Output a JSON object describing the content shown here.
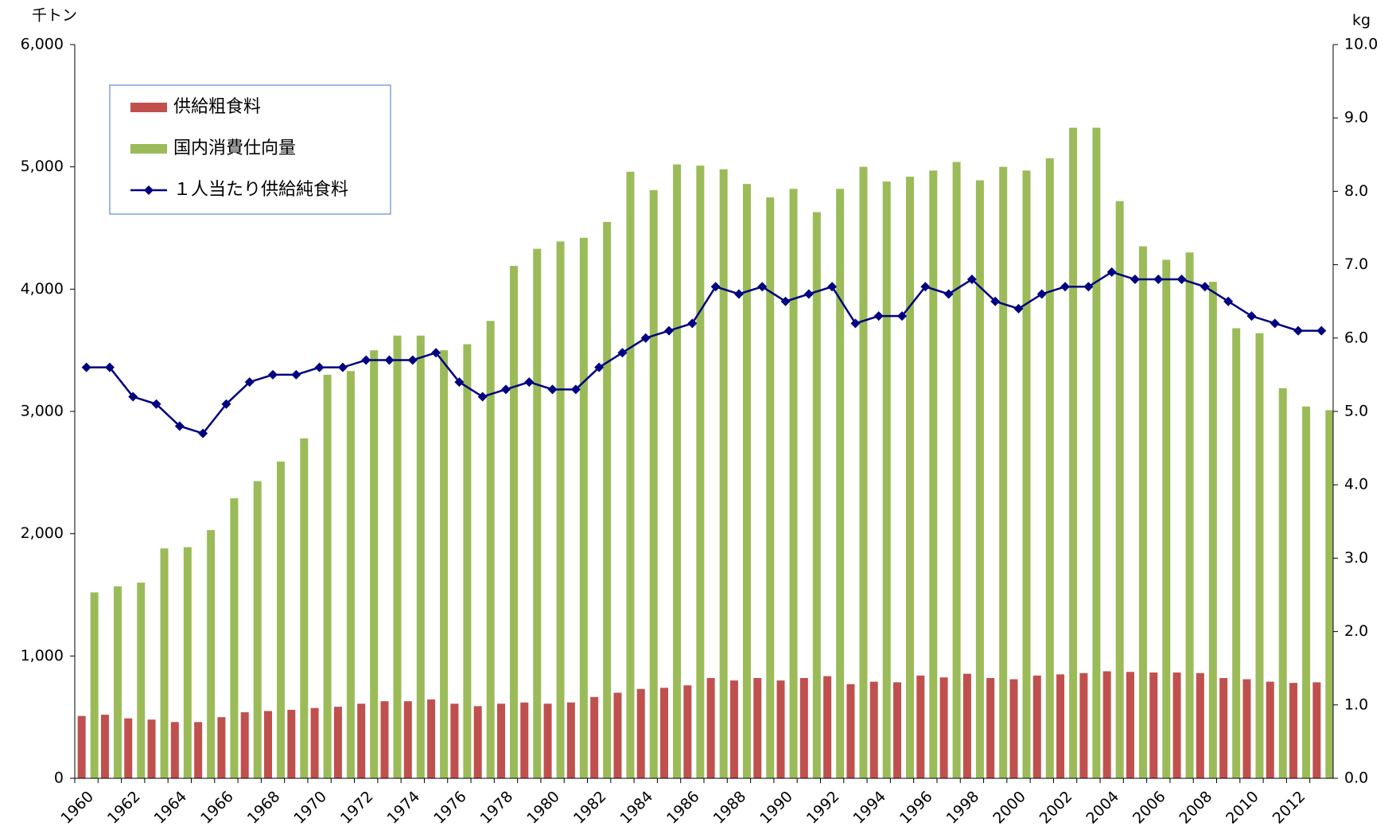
{
  "chart_data": {
    "type": "bar_line",
    "y_label": "千トン",
    "y2_label": "kg",
    "categories": [
      "1960",
      null,
      "1962",
      null,
      "1964",
      null,
      "1966",
      null,
      "1968",
      null,
      "1970",
      null,
      "1972",
      null,
      "1974",
      null,
      "1976",
      null,
      "1978",
      null,
      "1980",
      null,
      "1982",
      null,
      "1984",
      null,
      "1986",
      null,
      "1988",
      null,
      "1990",
      null,
      "1992",
      null,
      "1994",
      null,
      "1996",
      null,
      "1998",
      null,
      "2000",
      null,
      "2002",
      null,
      "2004",
      null,
      "2006",
      null,
      "2008",
      null,
      "2010",
      null,
      "2012",
      null
    ],
    "series": [
      {
        "name": "供給粗食料",
        "type": "bar",
        "color": "#c0504d",
        "values": [
          510,
          520,
          490,
          480,
          460,
          460,
          500,
          540,
          550,
          560,
          575,
          585,
          610,
          630,
          630,
          645,
          610,
          590,
          610,
          620,
          610,
          620,
          665,
          700,
          730,
          740,
          760,
          820,
          800,
          820,
          800,
          820,
          835,
          770,
          790,
          785,
          840,
          825,
          855,
          820,
          810,
          840,
          850,
          860,
          875,
          870,
          865,
          865,
          860,
          820,
          810,
          790,
          780,
          785
        ]
      },
      {
        "name": "国内消費仕向量",
        "type": "bar",
        "color": "#9bbb59",
        "values": [
          1520,
          1570,
          1600,
          1880,
          1890,
          2030,
          2290,
          2430,
          2590,
          2780,
          3300,
          3330,
          3500,
          3620,
          3620,
          3500,
          3550,
          3740,
          4190,
          4330,
          4390,
          4420,
          4550,
          4960,
          4810,
          5020,
          5010,
          4980,
          4860,
          4750,
          4820,
          4630,
          4820,
          5000,
          4880,
          4920,
          4970,
          5040,
          4890,
          5000,
          4970,
          5070,
          5320,
          5320,
          4720,
          4350,
          4240,
          4300,
          4060,
          3680,
          3640,
          3190,
          3040,
          3010
        ]
      },
      {
        "name": "１人当たり供給純食料",
        "type": "line",
        "axis": "y2",
        "color": "#000080",
        "values": [
          5.6,
          5.6,
          5.2,
          5.1,
          4.8,
          4.7,
          5.1,
          5.4,
          5.5,
          5.5,
          5.6,
          5.6,
          5.7,
          5.7,
          5.7,
          5.8,
          5.4,
          5.2,
          5.3,
          5.4,
          5.3,
          5.3,
          5.6,
          5.8,
          6.0,
          6.1,
          6.2,
          6.7,
          6.6,
          6.7,
          6.5,
          6.6,
          6.7,
          6.2,
          6.3,
          6.3,
          6.7,
          6.6,
          6.8,
          6.5,
          6.4,
          6.6,
          6.7,
          6.7,
          6.9,
          6.8,
          6.8,
          6.8,
          6.7,
          6.5,
          6.3,
          6.2,
          6.1,
          6.1
        ]
      }
    ],
    "ylim": [
      0,
      6000
    ],
    "yticks": [
      0,
      {
        "value": 1000,
        "label": "1,000"
      },
      {
        "value": 2000,
        "label": "2,000"
      },
      {
        "value": 3000,
        "label": "3,000"
      },
      {
        "value": 4000,
        "label": "4,000"
      },
      {
        "value": 5000,
        "label": "5,000"
      },
      {
        "value": 6000,
        "label": "6,000"
      }
    ],
    "y2lim": [
      0,
      10
    ],
    "y2ticks": [
      {
        "value": 0,
        "label": "0.0"
      },
      {
        "value": 1,
        "label": "1.0"
      },
      {
        "value": 2,
        "label": "2.0"
      },
      {
        "value": 3,
        "label": "3.0"
      },
      {
        "value": 4,
        "label": "4.0"
      },
      {
        "value": 5,
        "label": "5.0"
      },
      {
        "value": 6,
        "label": "6.0"
      },
      {
        "value": 7,
        "label": "7.0"
      },
      {
        "value": 8,
        "label": "8.0"
      },
      {
        "value": 9,
        "label": "9.0"
      },
      {
        "value": 10,
        "label": "10.0"
      }
    ],
    "grid": false
  }
}
